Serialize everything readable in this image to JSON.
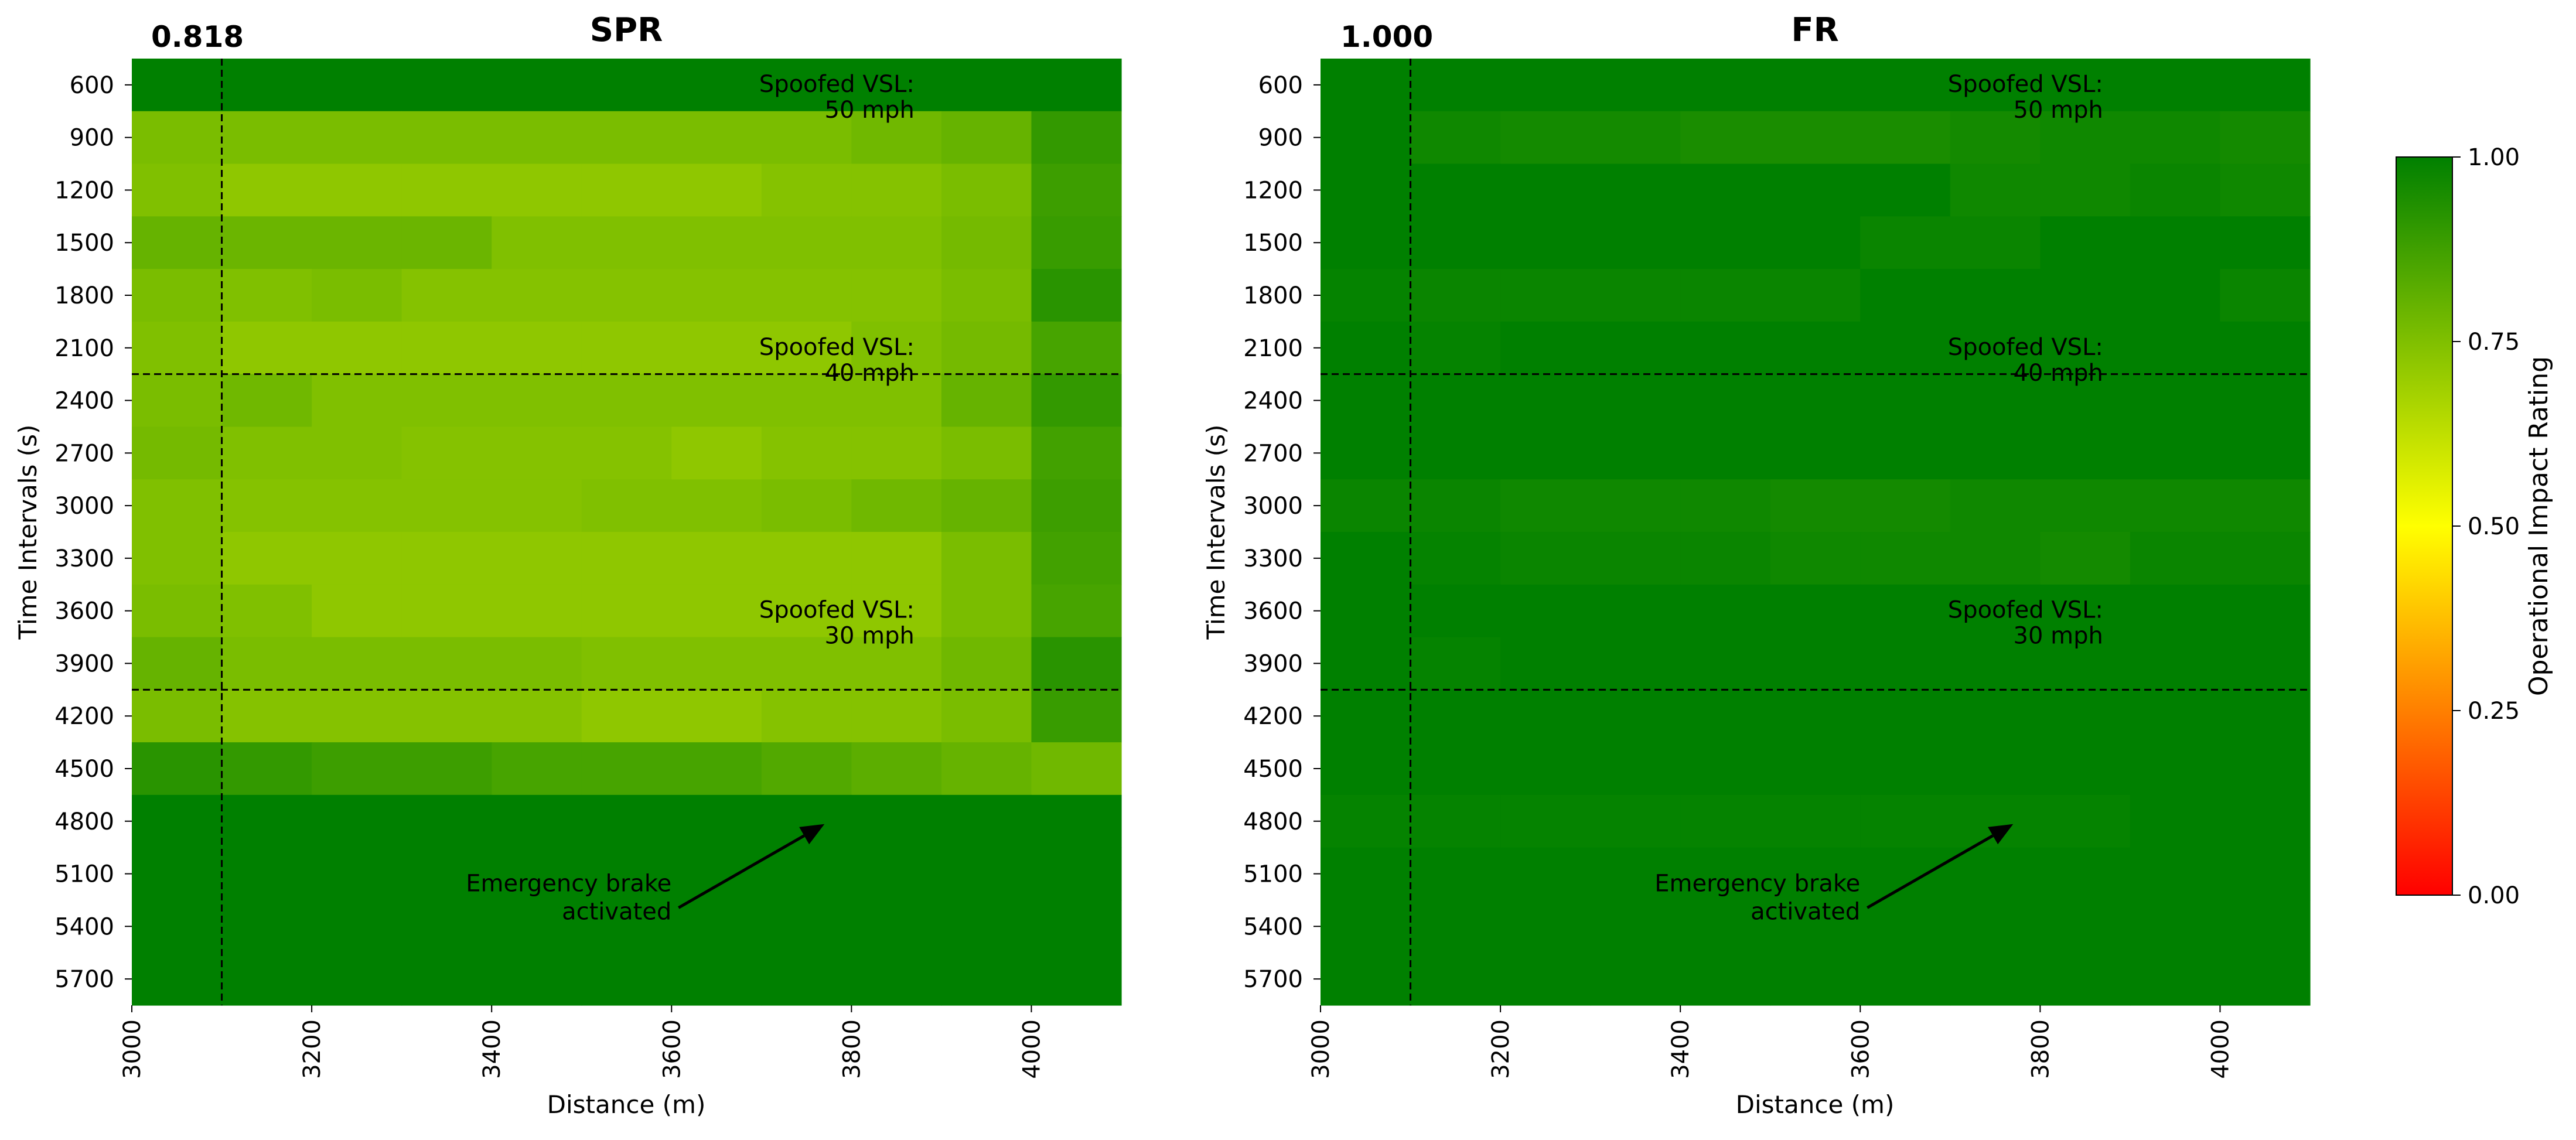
{
  "chart_data": [
    {
      "type": "heatmap",
      "title": "SPR",
      "marker_value": "0.818",
      "xlabel": "Distance (m)",
      "ylabel": "Time Intervals (s)",
      "x_ticks": [
        "3000",
        "3200",
        "3400",
        "3600",
        "3800",
        "4000"
      ],
      "y_ticks": [
        "600",
        "900",
        "1200",
        "1500",
        "1800",
        "2100",
        "2400",
        "2700",
        "3000",
        "3300",
        "3600",
        "3900",
        "4200",
        "4500",
        "4800",
        "5100",
        "5400",
        "5700"
      ],
      "x_range": [
        3000,
        4100
      ],
      "columns_x": [
        3000,
        3100,
        3200,
        3300,
        3400,
        3500,
        3600,
        3700,
        3800,
        3900,
        4000
      ],
      "rows_y": [
        600,
        900,
        1200,
        1500,
        1800,
        2100,
        2400,
        2700,
        3000,
        3300,
        3600,
        3900,
        4200,
        4500,
        4800,
        5100,
        5400,
        5700
      ],
      "values": [
        [
          1.0,
          1.0,
          1.0,
          1.0,
          1.0,
          1.0,
          1.0,
          1.0,
          1.0,
          1.0,
          1.0
        ],
        [
          0.76,
          0.76,
          0.76,
          0.76,
          0.76,
          0.76,
          0.76,
          0.76,
          0.78,
          0.8,
          0.9
        ],
        [
          0.75,
          0.72,
          0.72,
          0.72,
          0.72,
          0.72,
          0.72,
          0.74,
          0.74,
          0.76,
          0.88
        ],
        [
          0.8,
          0.79,
          0.79,
          0.79,
          0.75,
          0.75,
          0.75,
          0.75,
          0.75,
          0.77,
          0.89
        ],
        [
          0.76,
          0.75,
          0.76,
          0.74,
          0.74,
          0.74,
          0.74,
          0.74,
          0.74,
          0.76,
          0.92
        ],
        [
          0.75,
          0.72,
          0.72,
          0.72,
          0.72,
          0.72,
          0.72,
          0.72,
          0.75,
          0.77,
          0.86
        ],
        [
          0.76,
          0.78,
          0.75,
          0.75,
          0.75,
          0.75,
          0.75,
          0.75,
          0.75,
          0.8,
          0.9
        ],
        [
          0.77,
          0.75,
          0.75,
          0.74,
          0.74,
          0.74,
          0.72,
          0.74,
          0.74,
          0.76,
          0.87
        ],
        [
          0.75,
          0.74,
          0.74,
          0.74,
          0.74,
          0.75,
          0.75,
          0.76,
          0.78,
          0.8,
          0.88
        ],
        [
          0.75,
          0.72,
          0.72,
          0.72,
          0.72,
          0.72,
          0.72,
          0.72,
          0.72,
          0.76,
          0.87
        ],
        [
          0.76,
          0.75,
          0.72,
          0.72,
          0.72,
          0.72,
          0.72,
          0.72,
          0.72,
          0.76,
          0.86
        ],
        [
          0.8,
          0.76,
          0.76,
          0.76,
          0.76,
          0.75,
          0.75,
          0.75,
          0.75,
          0.78,
          0.92
        ],
        [
          0.76,
          0.74,
          0.74,
          0.74,
          0.74,
          0.72,
          0.72,
          0.74,
          0.74,
          0.76,
          0.89
        ],
        [
          0.92,
          0.9,
          0.88,
          0.88,
          0.86,
          0.86,
          0.86,
          0.84,
          0.82,
          0.8,
          0.78
        ],
        [
          1.0,
          1.0,
          1.0,
          1.0,
          1.0,
          1.0,
          1.0,
          1.0,
          1.0,
          1.0,
          1.0
        ],
        [
          1.0,
          1.0,
          1.0,
          1.0,
          1.0,
          1.0,
          1.0,
          1.0,
          1.0,
          1.0,
          1.0
        ],
        [
          1.0,
          1.0,
          1.0,
          1.0,
          1.0,
          1.0,
          1.0,
          1.0,
          1.0,
          1.0,
          1.0
        ],
        [
          1.0,
          1.0,
          1.0,
          1.0,
          1.0,
          1.0,
          1.0,
          1.0,
          1.0,
          1.0,
          1.0
        ]
      ],
      "vertical_line_x": 3100,
      "horizontal_lines_y": [
        2250,
        4050
      ],
      "annotations": [
        {
          "line1": "Spoofed VSL:",
          "line2": "50 mph",
          "y": 600
        },
        {
          "line1": "Spoofed VSL:",
          "line2": "40 mph",
          "y": 2100
        },
        {
          "line1": "Spoofed VSL:",
          "line2": "30 mph",
          "y": 3600
        }
      ],
      "arrow_annotation": {
        "line1": "Emergency brake",
        "line2": "activated",
        "text_x": 3600,
        "text_y": 5200,
        "target_x": 3770,
        "target_y": 4950
      }
    },
    {
      "type": "heatmap",
      "title": "FR",
      "marker_value": "1.000",
      "xlabel": "Distance (m)",
      "ylabel": "Time Intervals (s)",
      "x_ticks": [
        "3000",
        "3200",
        "3400",
        "3600",
        "3800",
        "4000"
      ],
      "y_ticks": [
        "600",
        "900",
        "1200",
        "1500",
        "1800",
        "2100",
        "2400",
        "2700",
        "3000",
        "3300",
        "3600",
        "3900",
        "4200",
        "4500",
        "4800",
        "5100",
        "5400",
        "5700"
      ],
      "x_range": [
        3000,
        4100
      ],
      "columns_x": [
        3000,
        3100,
        3200,
        3300,
        3400,
        3500,
        3600,
        3700,
        3800,
        3900,
        4000
      ],
      "rows_y": [
        600,
        900,
        1200,
        1500,
        1800,
        2100,
        2400,
        2700,
        3000,
        3300,
        3600,
        3900,
        4200,
        4500,
        4800,
        5100,
        5400,
        5700
      ],
      "values": [
        [
          1.0,
          1.0,
          1.0,
          1.0,
          1.0,
          1.0,
          1.0,
          1.0,
          1.0,
          1.0,
          1.0
        ],
        [
          1.0,
          0.97,
          0.96,
          0.96,
          0.95,
          0.95,
          0.95,
          0.96,
          0.97,
          0.97,
          0.96
        ],
        [
          1.0,
          1.0,
          1.0,
          1.0,
          1.0,
          1.0,
          1.0,
          0.97,
          0.97,
          0.98,
          0.97
        ],
        [
          1.0,
          1.0,
          1.0,
          1.0,
          1.0,
          1.0,
          0.98,
          0.98,
          1.0,
          1.0,
          1.0
        ],
        [
          0.99,
          0.98,
          0.98,
          0.98,
          0.98,
          0.98,
          1.0,
          1.0,
          1.0,
          1.0,
          0.98
        ],
        [
          1.0,
          0.99,
          1.0,
          1.0,
          1.0,
          1.0,
          1.0,
          1.0,
          1.0,
          1.0,
          1.0
        ],
        [
          1.0,
          1.0,
          1.0,
          1.0,
          1.0,
          1.0,
          1.0,
          1.0,
          1.0,
          1.0,
          1.0
        ],
        [
          1.0,
          1.0,
          1.0,
          1.0,
          1.0,
          1.0,
          1.0,
          1.0,
          1.0,
          1.0,
          1.0
        ],
        [
          0.98,
          0.98,
          0.97,
          0.97,
          0.97,
          0.96,
          0.96,
          0.97,
          0.97,
          0.97,
          0.97
        ],
        [
          1.0,
          0.99,
          0.98,
          0.98,
          0.98,
          0.97,
          0.97,
          0.97,
          0.96,
          0.98,
          0.98
        ],
        [
          1.0,
          1.0,
          1.0,
          1.0,
          1.0,
          1.0,
          1.0,
          1.0,
          1.0,
          1.0,
          1.0
        ],
        [
          1.0,
          0.99,
          1.0,
          1.0,
          1.0,
          1.0,
          1.0,
          1.0,
          1.0,
          1.0,
          1.0
        ],
        [
          1.0,
          1.0,
          1.0,
          1.0,
          1.0,
          1.0,
          1.0,
          1.0,
          1.0,
          1.0,
          1.0
        ],
        [
          1.0,
          1.0,
          1.0,
          1.0,
          1.0,
          1.0,
          1.0,
          1.0,
          1.0,
          1.0,
          1.0
        ],
        [
          0.99,
          0.99,
          0.99,
          0.99,
          0.99,
          0.99,
          0.99,
          0.99,
          0.99,
          1.0,
          1.0
        ],
        [
          1.0,
          1.0,
          1.0,
          1.0,
          1.0,
          1.0,
          1.0,
          1.0,
          1.0,
          1.0,
          1.0
        ],
        [
          1.0,
          1.0,
          1.0,
          1.0,
          1.0,
          1.0,
          1.0,
          1.0,
          1.0,
          1.0,
          1.0
        ],
        [
          1.0,
          1.0,
          1.0,
          1.0,
          1.0,
          1.0,
          1.0,
          1.0,
          1.0,
          1.0,
          1.0
        ]
      ],
      "vertical_line_x": 3100,
      "horizontal_lines_y": [
        2250,
        4050
      ],
      "annotations": [
        {
          "line1": "Spoofed VSL:",
          "line2": "50 mph",
          "y": 600
        },
        {
          "line1": "Spoofed VSL:",
          "line2": "40 mph",
          "y": 2100
        },
        {
          "line1": "Spoofed VSL:",
          "line2": "30 mph",
          "y": 3600
        }
      ],
      "arrow_annotation": {
        "line1": "Emergency brake",
        "line2": "activated",
        "text_x": 3600,
        "text_y": 5200,
        "target_x": 3770,
        "target_y": 4950
      }
    }
  ],
  "colorbar": {
    "label": "Operational Impact Rating",
    "range": [
      0.0,
      1.0
    ],
    "ticks": [
      "0.00",
      "0.25",
      "0.50",
      "0.75",
      "1.00"
    ],
    "tick_values": [
      0.0,
      0.25,
      0.5,
      0.75,
      1.0
    ],
    "colors": [
      "#ff0000",
      "#ffff00",
      "#008000"
    ]
  }
}
